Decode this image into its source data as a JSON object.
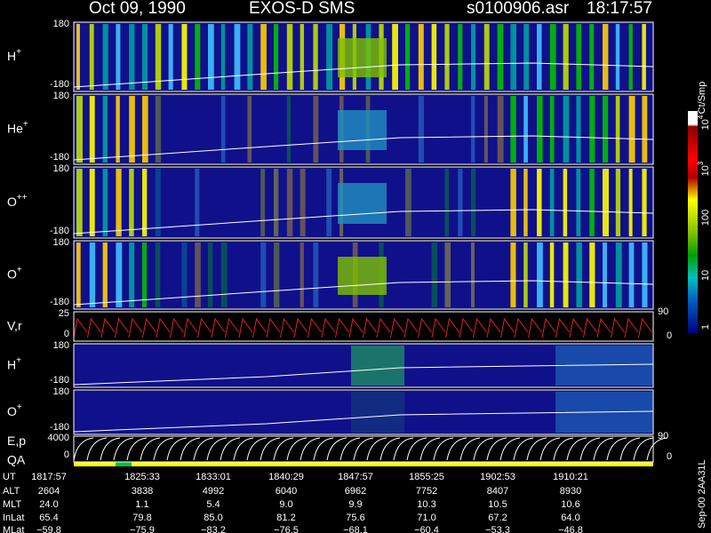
{
  "header": {
    "date": "Oct 09, 1990",
    "instrument": "EXOS-D SMS",
    "file": "s0100906.asr",
    "time": "18:17:57"
  },
  "panels": [
    {
      "ion": "H",
      "charge": "+",
      "ytop": 180,
      "ybottom": -180
    },
    {
      "ion": "He",
      "charge": "+",
      "ytop": 180,
      "ybottom": -180
    },
    {
      "ion": "O",
      "charge": "++",
      "ytop": 180,
      "ybottom": -180
    },
    {
      "ion": "O",
      "charge": "+",
      "ytop": 180,
      "ybottom": -180
    },
    {
      "ion": "V,r",
      "ytop": 25,
      "ybottom": 0,
      "y2top": 90,
      "y2bottom": 0
    },
    {
      "ion": "H",
      "charge": "+",
      "ytop": 180,
      "ybottom": -180
    },
    {
      "ion": "O",
      "charge": "+",
      "ytop": 180,
      "ybottom": -180
    },
    {
      "ion": "E,p",
      "ytop": 4000,
      "ybottom": 0,
      "y2top": 90,
      "y2bottom": 0
    }
  ],
  "qa_label": "QA",
  "colorbar": {
    "label": "Ct/Smp",
    "ticks": [
      {
        "base": "10",
        "exponent": "4"
      },
      {
        "base": "10",
        "exponent": "3"
      },
      "100",
      "10",
      "1"
    ]
  },
  "footer_note": "Sep-00  2AA31L",
  "table": {
    "rows": [
      [
        "UT",
        "1817:57",
        "1825:33",
        "1833:01",
        "1840:29",
        "1847:57",
        "1855:25",
        "1902:53",
        "1910:21"
      ],
      [
        "ALT",
        "2604",
        "3838",
        "4992",
        "6040",
        "6962",
        "7752",
        "8407",
        "8930"
      ],
      [
        "MLT",
        "24.0",
        "1.1",
        "5.4",
        "9.0",
        "9.9",
        "10.3",
        "10.5",
        "10.6"
      ],
      [
        "InLat",
        "65.4",
        "79.8",
        "85.0",
        "81.2",
        "75.6",
        "71.0",
        "67.2",
        "64.0"
      ],
      [
        "MLat",
        "−59.8",
        "−75.9",
        "−83.2",
        "−76.5",
        "−68.1",
        "−60.4",
        "−53.3",
        "−46.8"
      ]
    ]
  }
}
